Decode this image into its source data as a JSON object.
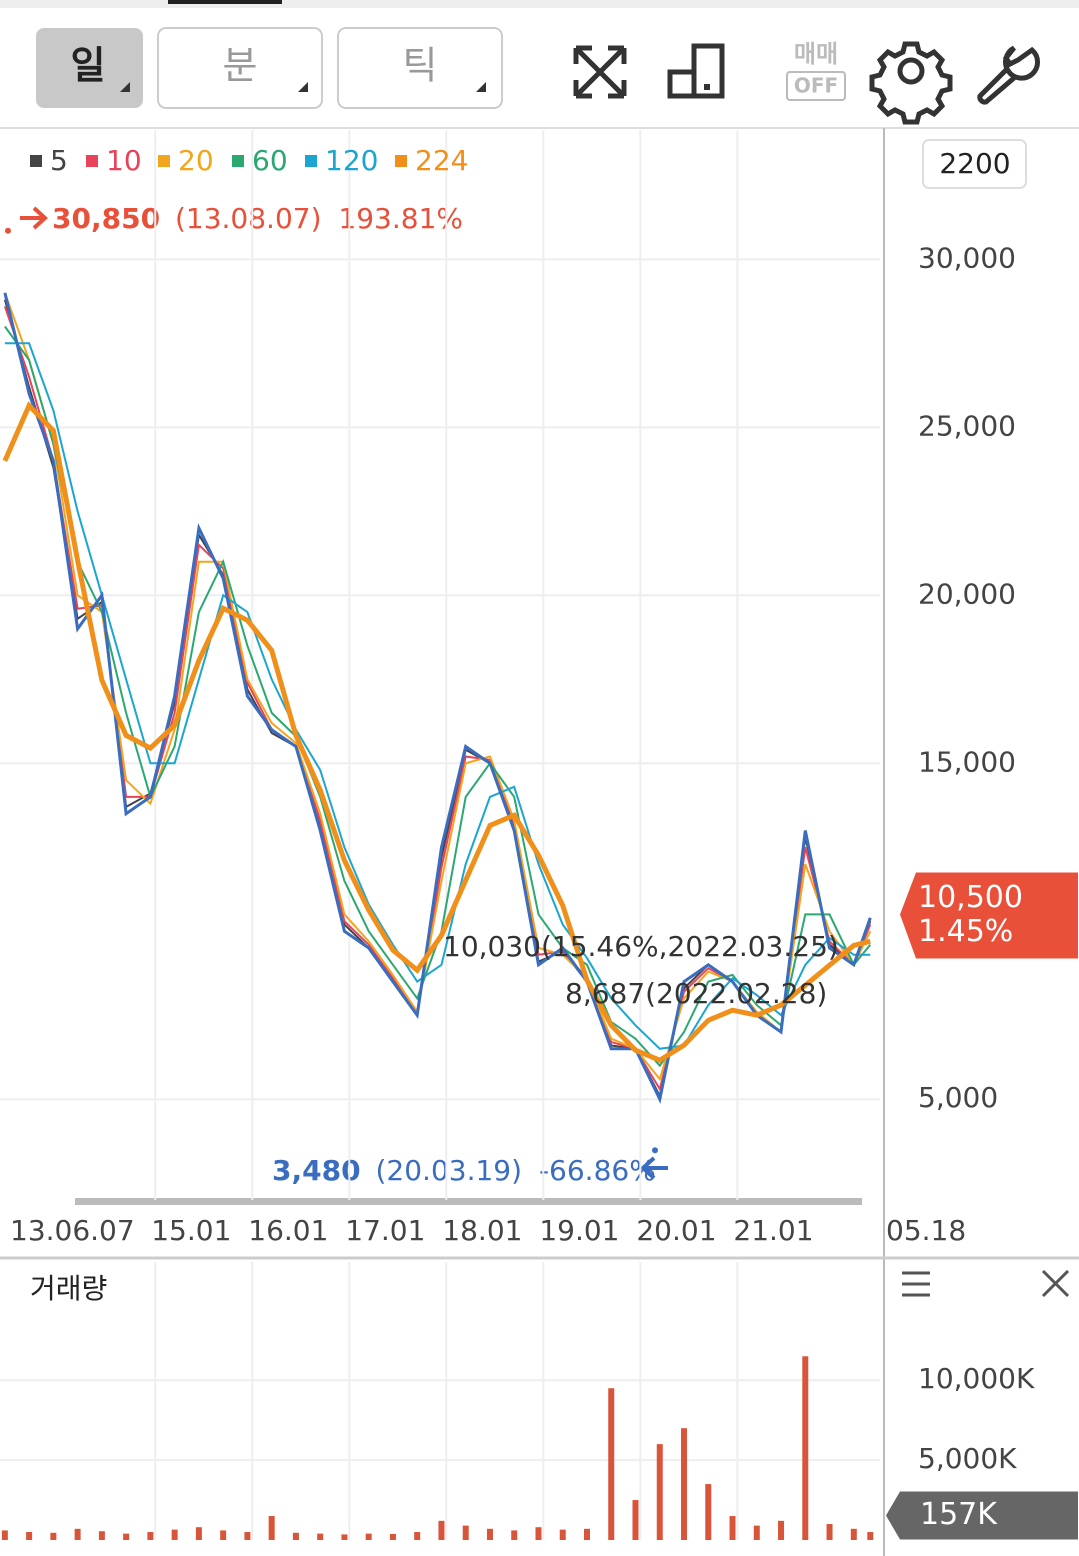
{
  "toolbar": {
    "period": [
      "일",
      "분",
      "틱"
    ],
    "trade": [
      "매매",
      "OFF"
    ]
  },
  "chart_data": {
    "type": "line",
    "x": [
      2013.45,
      2013.7,
      2013.95,
      2014.2,
      2014.45,
      2014.7,
      2014.95,
      2015.2,
      2015.45,
      2015.7,
      2015.95,
      2016.2,
      2016.45,
      2016.7,
      2016.95,
      2017.2,
      2017.45,
      2017.7,
      2017.95,
      2018.2,
      2018.45,
      2018.7,
      2018.95,
      2019.2,
      2019.45,
      2019.7,
      2019.95,
      2020.2,
      2020.45,
      2020.7,
      2020.95,
      2021.2,
      2021.45,
      2021.7,
      2021.95,
      2022.2,
      2022.37
    ],
    "close": {
      "color": "#3a6cc0",
      "values": [
        29000,
        26000,
        24000,
        19000,
        20000,
        13500,
        14000,
        17000,
        22000,
        20500,
        17000,
        16000,
        15500,
        13000,
        10000,
        9500,
        8500,
        7500,
        12500,
        15500,
        15000,
        13000,
        9000,
        9500,
        8500,
        6500,
        6500,
        5000,
        8500,
        9000,
        8500,
        7500,
        7000,
        13000,
        9500,
        9000,
        10400
      ]
    },
    "series": [
      {
        "name": "5",
        "color": "#444444",
        "values": [
          28800,
          26200,
          23800,
          19300,
          19800,
          13700,
          14100,
          16800,
          21800,
          20600,
          17200,
          15900,
          15500,
          13100,
          10200,
          9500,
          8600,
          7600,
          12200,
          15400,
          15000,
          13100,
          9100,
          9400,
          8500,
          6600,
          6500,
          5100,
          8300,
          9000,
          8500,
          7500,
          7000,
          12800,
          9600,
          9000,
          10300
        ]
      },
      {
        "name": "10",
        "color": "#e8435a",
        "values": [
          28600,
          26500,
          24000,
          19600,
          19700,
          14000,
          14000,
          16500,
          21500,
          20800,
          17400,
          16000,
          15500,
          13300,
          10300,
          9600,
          8600,
          7600,
          11900,
          15200,
          15100,
          13200,
          9300,
          9400,
          8600,
          6700,
          6500,
          5300,
          8200,
          8900,
          8500,
          7500,
          7000,
          12500,
          9700,
          9000,
          10200
        ]
      },
      {
        "name": "20",
        "color": "#f2a51e",
        "values": [
          29000,
          27000,
          24500,
          20000,
          19500,
          14500,
          13800,
          16000,
          21000,
          21000,
          17500,
          16200,
          15600,
          13500,
          10500,
          9700,
          8700,
          7600,
          11500,
          15000,
          15200,
          13300,
          9500,
          9300,
          8600,
          6800,
          6500,
          5600,
          8000,
          8800,
          8500,
          7600,
          7000,
          12000,
          10000,
          9000,
          10000
        ]
      },
      {
        "name": "60",
        "color": "#2aa870",
        "values": [
          28000,
          27000,
          24500,
          21000,
          19500,
          16500,
          14000,
          15500,
          19500,
          21000,
          18500,
          16500,
          15800,
          14000,
          11500,
          10000,
          9000,
          8000,
          10000,
          14000,
          15000,
          14000,
          10500,
          9500,
          9000,
          7300,
          6800,
          6000,
          7000,
          8500,
          8700,
          7800,
          7200,
          10500,
          10500,
          9000,
          9600
        ]
      },
      {
        "name": "120",
        "color": "#1aa6d0",
        "values": [
          27500,
          27500,
          25500,
          22500,
          20000,
          17500,
          15000,
          15000,
          17500,
          20000,
          19500,
          17500,
          16000,
          14800,
          12500,
          10800,
          9600,
          8500,
          9000,
          12000,
          14000,
          14300,
          12000,
          10200,
          9200,
          8000,
          7200,
          6500,
          6600,
          7800,
          8600,
          8100,
          7500,
          9000,
          9800,
          9300,
          9300
        ]
      },
      {
        "name": "224",
        "color": "#f0901a",
        "values": [
          24000,
          25650,
          24900,
          21040,
          17470,
          15830,
          15450,
          16130,
          18060,
          19610,
          19260,
          18360,
          15830,
          14200,
          12110,
          10630,
          9440,
          8840,
          9880,
          11520,
          13150,
          13450,
          12260,
          10770,
          8540,
          7200,
          6460,
          6160,
          6610,
          7350,
          7650,
          7500,
          7800,
          8390,
          8990,
          9580,
          9700
        ]
      }
    ],
    "xlim": [
      2013.4,
      2022.47
    ],
    "xticks": [
      {
        "value": 2013.43,
        "label": "13.06.07"
      },
      {
        "value": 2015.0,
        "label": "15.01"
      },
      {
        "value": 2016.0,
        "label": "16.01"
      },
      {
        "value": 2017.0,
        "label": "17.01"
      },
      {
        "value": 2018.0,
        "label": "18.01"
      },
      {
        "value": 2019.0,
        "label": "19.01"
      },
      {
        "value": 2020.0,
        "label": "20.01"
      },
      {
        "value": 2021.0,
        "label": "21.01"
      }
    ],
    "last_date": "05.18",
    "ylim": [
      2000,
      33850
    ],
    "yticks": [
      {
        "value": 5000,
        "label": "5,000"
      },
      {
        "value": 15000,
        "label": "15,000"
      },
      {
        "value": 20000,
        "label": "20,000"
      },
      {
        "value": 25000,
        "label": "25,000"
      },
      {
        "value": 30000,
        "label": "30,000"
      }
    ],
    "grid": true,
    "scale_box": "2200",
    "high": {
      "value": 30850,
      "label": "30,850",
      "date": "(13.08.07)",
      "change": "193.81%"
    },
    "low": {
      "value": 3480,
      "label": "3,480",
      "date": "(20.03.19)",
      "change": "-66.86%"
    },
    "notes": [
      "10,030(15.46%,2022.03.25)",
      "8,687(2022.02.28)"
    ],
    "last": {
      "value": 10500,
      "label": "10,500",
      "change": "1.45%",
      "color": "#e8503a"
    },
    "volume": {
      "title": "거래량",
      "color": "#d9553a",
      "values": [
        600,
        500,
        450,
        700,
        550,
        400,
        500,
        650,
        800,
        600,
        500,
        1500,
        450,
        400,
        350,
        400,
        380,
        500,
        1200,
        900,
        700,
        600,
        800,
        650,
        700,
        9500,
        2500,
        6000,
        7000,
        3500,
        1500,
        900,
        1200,
        11500,
        1000,
        700,
        500
      ],
      "ylim": [
        0,
        17400
      ],
      "yticks": [
        {
          "value": 5000,
          "label": "5,000K"
        },
        {
          "value": 10000,
          "label": "10,000K"
        }
      ],
      "last": {
        "value": 157,
        "label": "157K"
      }
    }
  }
}
